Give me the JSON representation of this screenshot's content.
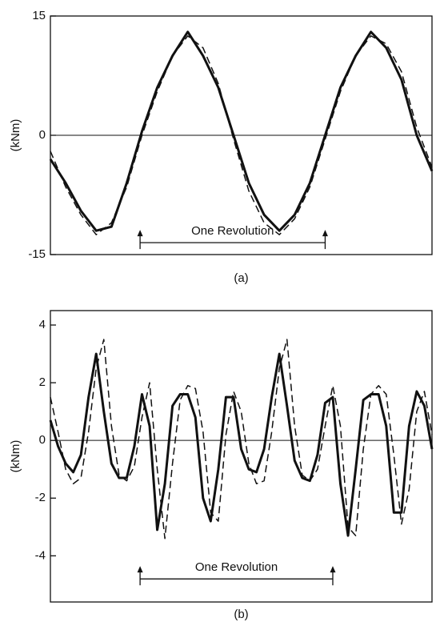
{
  "chart_data": [
    {
      "type": "line",
      "ylabel": "(kNm)",
      "caption": "(a)",
      "x": [
        0,
        4,
        8,
        12,
        16,
        20,
        24,
        28,
        32,
        36,
        40,
        44,
        48,
        52,
        56,
        60,
        64,
        68,
        72,
        76,
        80,
        84,
        88,
        92,
        96,
        100
      ],
      "xlim": [
        0,
        100
      ],
      "ylim": [
        -15,
        15
      ],
      "yticks": [
        -15,
        0,
        15
      ],
      "hline": 0,
      "series": [
        {
          "color": "#111111",
          "dash": false,
          "values": [
            -3,
            -6,
            -9.5,
            -12,
            -11.5,
            -6,
            0.5,
            6,
            10,
            13,
            10,
            6,
            0,
            -6,
            -10,
            -12,
            -10,
            -6,
            0,
            6,
            10,
            13,
            11,
            7,
            0,
            -4.5
          ]
        },
        {
          "color": "#111111",
          "dash": true,
          "values": [
            -2,
            -6.5,
            -10,
            -12.5,
            -11,
            -6.5,
            0,
            5.5,
            10,
            12.5,
            11,
            6.5,
            -0.5,
            -7,
            -11,
            -12.5,
            -10.5,
            -6.5,
            -0.5,
            5.5,
            10,
            12.5,
            11.5,
            8,
            1,
            -4
          ]
        }
      ],
      "annotation": {
        "text": "One Revolution",
        "x": [
          23.5,
          72
        ],
        "y": -13.5
      }
    },
    {
      "type": "line",
      "ylabel": "(kNm)",
      "caption": "(b)",
      "x": [
        0,
        2,
        4,
        6,
        8,
        10,
        12,
        14,
        16,
        18,
        20,
        22,
        24,
        26,
        28,
        30,
        32,
        34,
        36,
        38,
        40,
        42,
        44,
        46,
        48,
        50,
        52,
        54,
        56,
        58,
        60,
        62,
        64,
        66,
        68,
        70,
        72,
        74,
        76,
        78,
        80,
        82,
        84,
        86,
        88,
        90,
        92,
        94,
        96,
        98,
        100
      ],
      "xlim": [
        0,
        100
      ],
      "ylim": [
        -5.6,
        4.5
      ],
      "yticks": [
        -4,
        -2,
        0,
        2,
        4
      ],
      "hline": 0,
      "series": [
        {
          "color": "#111111",
          "dash": false,
          "values": [
            0.7,
            -0.2,
            -0.8,
            -1.1,
            -0.5,
            1.5,
            3.0,
            1.0,
            -0.8,
            -1.3,
            -1.3,
            -0.2,
            1.6,
            0.5,
            -3.1,
            -1.5,
            1.2,
            1.6,
            1.6,
            0.8,
            -2.0,
            -2.8,
            -1.0,
            1.5,
            1.5,
            -0.3,
            -1.0,
            -1.1,
            -0.3,
            1.5,
            3.0,
            1.2,
            -0.7,
            -1.3,
            -1.4,
            -0.5,
            1.3,
            1.5,
            -1.5,
            -3.3,
            -1.0,
            1.4,
            1.6,
            1.6,
            0.5,
            -2.5,
            -2.5,
            0.5,
            1.7,
            1.2,
            -0.3
          ]
        },
        {
          "color": "#111111",
          "dash": true,
          "values": [
            1.5,
            0.3,
            -1.0,
            -1.5,
            -1.3,
            0.3,
            2.5,
            3.5,
            0.5,
            -1.2,
            -1.4,
            -0.9,
            0.8,
            2.0,
            -1.0,
            -3.4,
            -0.8,
            1.4,
            1.9,
            1.8,
            0.3,
            -2.5,
            -2.8,
            0.2,
            1.7,
            1.0,
            -0.8,
            -1.5,
            -1.4,
            0.3,
            2.5,
            3.5,
            0.5,
            -1.2,
            -1.4,
            -1.0,
            0.5,
            1.9,
            0.5,
            -3.0,
            -3.3,
            -0.3,
            1.6,
            1.9,
            1.6,
            -0.5,
            -2.9,
            -1.7,
            1.0,
            1.7,
            0.2
          ]
        }
      ],
      "annotation": {
        "text": "One Revolution",
        "x": [
          23.5,
          74
        ],
        "y": -4.8
      }
    }
  ]
}
